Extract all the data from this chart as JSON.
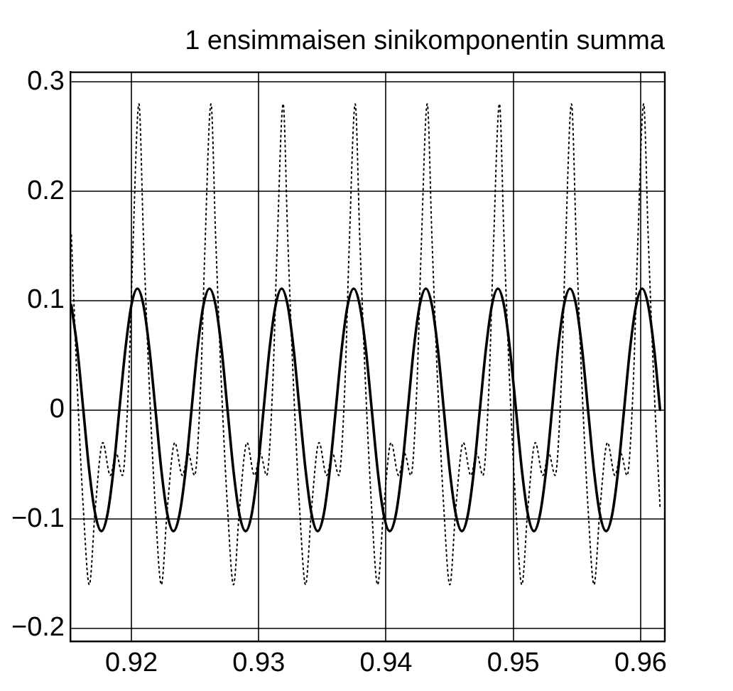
{
  "chart_data": {
    "type": "line",
    "title": "1 ensimmaisen sinikomponentin summa",
    "xlim": [
      0.9152,
      0.9619
    ],
    "xticks": [
      0.92,
      0.93,
      0.94,
      0.95,
      0.96
    ],
    "ylim": [
      -0.212,
      0.309
    ],
    "yticks": [
      {
        "value": -0.2,
        "label": "−0.2"
      },
      {
        "value": -0.1,
        "label": "−0.1"
      },
      0,
      0.1,
      0.2,
      0.3
    ],
    "grid": true,
    "legend": false,
    "marker": "none",
    "series": [
      {
        "color": "#000000",
        "line_style": "dotted",
        "x": [
          0.91528,
          0.91575,
          0.91622,
          0.91669,
          0.91716,
          0.91775,
          0.91834,
          0.91881,
          0.91929,
          0.91976,
          0.92012,
          0.92059,
          0.92094,
          0.92141,
          0.92188,
          0.92235,
          0.92282,
          0.92341,
          0.924,
          0.92447,
          0.92496,
          0.92543,
          0.92578,
          0.92625,
          0.92661,
          0.92708,
          0.92755,
          0.92802,
          0.92849,
          0.92908,
          0.92966,
          0.93013,
          0.93062,
          0.93109,
          0.93145,
          0.93192,
          0.93227,
          0.93274,
          0.93321,
          0.93368,
          0.93415,
          0.93474,
          0.93533,
          0.9358,
          0.93629,
          0.93676,
          0.93711,
          0.93758,
          0.93793,
          0.9384,
          0.93887,
          0.93934,
          0.93982,
          0.9404,
          0.94099,
          0.94146,
          0.94195,
          0.94242,
          0.94277,
          0.94324,
          0.9436,
          0.94407,
          0.94454,
          0.94501,
          0.94548,
          0.94607,
          0.94666,
          0.94713,
          0.94761,
          0.94808,
          0.94844,
          0.94891,
          0.94926,
          0.94973,
          0.9502,
          0.95067,
          0.95114,
          0.95173,
          0.95232,
          0.95279,
          0.95328,
          0.95375,
          0.9541,
          0.95457,
          0.95493,
          0.9554,
          0.95587,
          0.95634,
          0.95681,
          0.9574,
          0.95798,
          0.95845,
          0.95894,
          0.95941,
          0.95977,
          0.96024,
          0.96059,
          0.96106,
          0.96153
        ],
        "values": [
          0.16,
          0.02,
          -0.09,
          -0.16,
          -0.09,
          -0.03,
          -0.06,
          -0.04,
          -0.06,
          0.02,
          0.15,
          0.28,
          0.16,
          0.02,
          -0.09,
          -0.16,
          -0.09,
          -0.03,
          -0.06,
          -0.04,
          -0.06,
          0.02,
          0.15,
          0.28,
          0.16,
          0.02,
          -0.09,
          -0.16,
          -0.09,
          -0.03,
          -0.06,
          -0.04,
          -0.06,
          0.02,
          0.15,
          0.28,
          0.16,
          0.02,
          -0.09,
          -0.16,
          -0.09,
          -0.03,
          -0.06,
          -0.04,
          -0.06,
          0.02,
          0.15,
          0.28,
          0.16,
          0.02,
          -0.09,
          -0.16,
          -0.09,
          -0.03,
          -0.06,
          -0.04,
          -0.06,
          0.02,
          0.15,
          0.28,
          0.16,
          0.02,
          -0.09,
          -0.16,
          -0.09,
          -0.03,
          -0.06,
          -0.04,
          -0.06,
          0.02,
          0.15,
          0.28,
          0.16,
          0.02,
          -0.09,
          -0.16,
          -0.09,
          -0.03,
          -0.06,
          -0.04,
          -0.06,
          0.02,
          0.15,
          0.28,
          0.16,
          0.02,
          -0.09,
          -0.16,
          -0.09,
          -0.03,
          -0.06,
          -0.04,
          -0.06,
          0.02,
          0.15,
          0.28,
          0.16,
          0.02,
          -0.09
        ]
      },
      {
        "color": "#000000",
        "line_style": "solid",
        "x": [
          0.91528,
          0.91575,
          0.91622,
          0.91669,
          0.91717,
          0.91764,
          0.91811,
          0.91858,
          0.91905,
          0.91953,
          0.92,
          0.92047,
          0.92094,
          0.92141,
          0.92189,
          0.92236,
          0.92283,
          0.9233,
          0.92377,
          0.92425,
          0.92472,
          0.92519,
          0.92566,
          0.92613,
          0.92661,
          0.92708,
          0.92755,
          0.92802,
          0.92849,
          0.92897,
          0.92944,
          0.92991,
          0.93038,
          0.93085,
          0.93133,
          0.9318,
          0.93227,
          0.93274,
          0.93321,
          0.93369,
          0.93416,
          0.93463,
          0.9351,
          0.93557,
          0.93605,
          0.93652,
          0.93699,
          0.93746,
          0.93793,
          0.93841,
          0.93888,
          0.93935,
          0.93982,
          0.94029,
          0.94077,
          0.94124,
          0.94171,
          0.94218,
          0.94265,
          0.94313,
          0.9436,
          0.94407,
          0.94454,
          0.94501,
          0.94549,
          0.94596,
          0.94643,
          0.9469,
          0.94737,
          0.94785,
          0.94832,
          0.94879,
          0.94926,
          0.94973,
          0.95021,
          0.95068,
          0.95115,
          0.95162,
          0.95209,
          0.95257,
          0.95304,
          0.95351,
          0.95398,
          0.95445,
          0.95493,
          0.9554,
          0.95587,
          0.95634,
          0.95681,
          0.95729,
          0.95776,
          0.95823,
          0.9587,
          0.95917,
          0.95965,
          0.96012,
          0.96059,
          0.96106,
          0.96153
        ],
        "values": [
          0.096,
          0.056,
          0,
          -0.056,
          -0.096,
          -0.111,
          -0.096,
          -0.056,
          0,
          0.056,
          0.096,
          0.111,
          0.096,
          0.056,
          0,
          -0.056,
          -0.096,
          -0.111,
          -0.096,
          -0.056,
          0,
          0.056,
          0.096,
          0.111,
          0.096,
          0.056,
          0,
          -0.056,
          -0.096,
          -0.111,
          -0.096,
          -0.056,
          0,
          0.056,
          0.096,
          0.111,
          0.096,
          0.056,
          0,
          -0.056,
          -0.096,
          -0.111,
          -0.096,
          -0.056,
          0,
          0.056,
          0.096,
          0.111,
          0.096,
          0.056,
          0,
          -0.056,
          -0.096,
          -0.111,
          -0.096,
          -0.056,
          0,
          0.056,
          0.096,
          0.111,
          0.096,
          0.056,
          0,
          -0.056,
          -0.096,
          -0.111,
          -0.096,
          -0.056,
          0,
          0.056,
          0.096,
          0.111,
          0.096,
          0.056,
          0,
          -0.056,
          -0.096,
          -0.111,
          -0.096,
          -0.056,
          0,
          0.056,
          0.096,
          0.111,
          0.096,
          0.056,
          0,
          -0.056,
          -0.096,
          -0.111,
          -0.096,
          -0.056,
          0,
          0.056,
          0.096,
          0.111,
          0.096,
          0.056,
          0
        ]
      }
    ]
  }
}
